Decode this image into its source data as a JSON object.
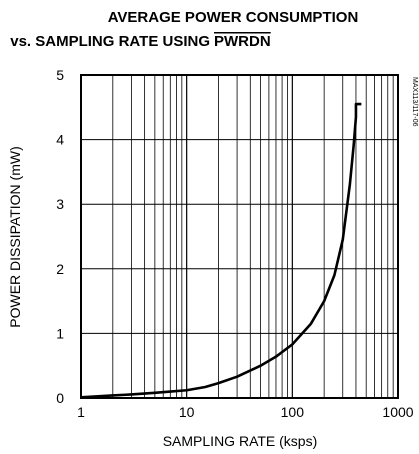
{
  "chart_data": {
    "type": "line",
    "title_line1": "AVERAGE POWER CONSUMPTION",
    "title_line2": "vs. SAMPLING RATE USING",
    "title_overlined_word": "PWRDN",
    "xlabel": "SAMPLING RATE (ksps)",
    "ylabel": "POWER DISSIPATION (mW)",
    "side_label": "MAX113/117-06",
    "x_scale": "log",
    "xlim": [
      1,
      1000
    ],
    "ylim": [
      0,
      5
    ],
    "x_ticks": [
      1,
      10,
      100,
      1000
    ],
    "x_tick_labels": [
      "1",
      "10",
      "100",
      "1000"
    ],
    "y_ticks": [
      0,
      1,
      2,
      3,
      4,
      5
    ],
    "y_tick_labels": [
      "0",
      "1",
      "2",
      "3",
      "4",
      "5"
    ],
    "grid": true,
    "series": [
      {
        "x": [
          1,
          2,
          3,
          5,
          7,
          10,
          15,
          20,
          30,
          50,
          70,
          100,
          150,
          200,
          250,
          300,
          350,
          380,
          400,
          400,
          450
        ],
        "y": [
          0.01,
          0.04,
          0.055,
          0.08,
          0.1,
          0.12,
          0.17,
          0.23,
          0.33,
          0.5,
          0.64,
          0.83,
          1.15,
          1.5,
          1.9,
          2.45,
          3.3,
          3.9,
          4.35,
          4.55,
          4.55
        ]
      }
    ]
  }
}
